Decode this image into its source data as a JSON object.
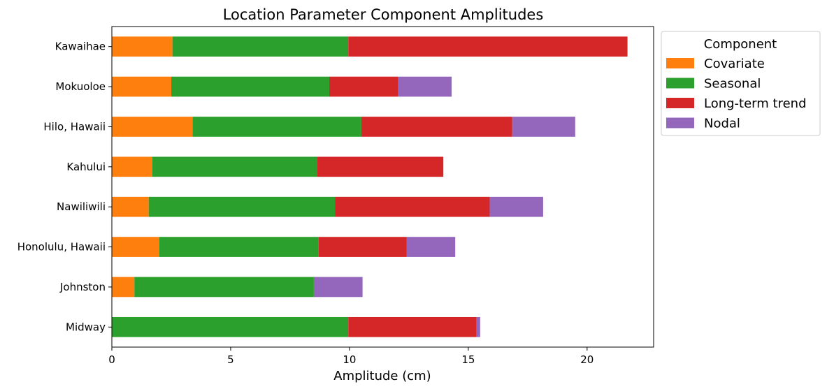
{
  "chart_data": {
    "type": "bar",
    "orientation": "horizontal",
    "stacked": true,
    "title": "Location Parameter Component Amplitudes",
    "xlabel": "Amplitude (cm)",
    "ylabel": "",
    "xlim": [
      0,
      22.8
    ],
    "xticks": [
      0,
      5,
      10,
      15,
      20
    ],
    "grid": false,
    "legend_title": "Component",
    "legend_position": "outside-top-right",
    "categories": [
      "Kawaihae",
      "Mokuoloe",
      "Hilo, Hawaii",
      "Kahului",
      "Nawiliwili",
      "Honolulu, Hawaii",
      "Johnston",
      "Midway"
    ],
    "series": [
      {
        "name": "Covariate",
        "color": "#ff7f0e",
        "values": [
          2.55,
          2.5,
          3.4,
          1.7,
          1.55,
          2.0,
          0.95,
          0.0
        ]
      },
      {
        "name": "Seasonal",
        "color": "#2ca02c",
        "values": [
          7.4,
          6.65,
          7.1,
          6.95,
          7.85,
          6.7,
          7.55,
          9.95
        ]
      },
      {
        "name": "Long-term trend",
        "color": "#d62728",
        "values": [
          11.75,
          2.9,
          6.35,
          5.3,
          6.5,
          3.7,
          0.0,
          5.4
        ]
      },
      {
        "name": "Nodal",
        "color": "#9467bd",
        "values": [
          0.0,
          2.25,
          2.65,
          0.0,
          2.25,
          2.05,
          2.05,
          0.15
        ]
      }
    ]
  }
}
